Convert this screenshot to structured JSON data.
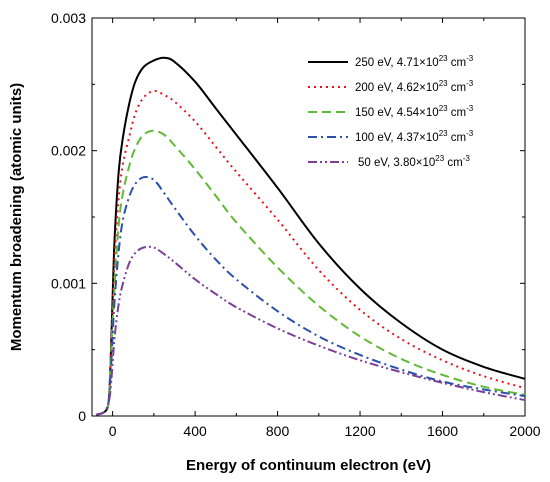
{
  "chart_data": {
    "type": "line",
    "xlabel": "Energy of continuum electron (eV)",
    "ylabel": "Momentum broadening (atomic units)",
    "xlim": [
      -100,
      2000
    ],
    "ylim": [
      0,
      0.003
    ],
    "x_ticks": [
      0,
      400,
      800,
      1200,
      1600,
      2000
    ],
    "y_ticks": [
      0,
      0.001,
      0.002,
      0.003
    ],
    "x_tick_labels": [
      "0",
      "400",
      "800",
      "1200",
      "1600",
      "2000"
    ],
    "y_tick_labels": [
      "0",
      "0.001",
      "0.002",
      "0.003"
    ],
    "grid": false,
    "legend_position": "top-right",
    "series": [
      {
        "name": "250 eV, 4.71×10²³ cm⁻³",
        "legend_label": {
          "main": "250 eV, 4.71×10",
          "exp": "23",
          "unit": " cm",
          "unit_exp": "-3"
        },
        "color": "#000000",
        "dash": "solid",
        "x": [
          -80,
          -40,
          -20,
          -10,
          0,
          10,
          30,
          50,
          80,
          110,
          150,
          200,
          250,
          300,
          400,
          500,
          600,
          800,
          1000,
          1200,
          1400,
          1600,
          1800,
          2000
        ],
        "y": [
          1e-05,
          3e-05,
          0.0001,
          0.0004,
          0.0009,
          0.00135,
          0.00185,
          0.0021,
          0.00235,
          0.00252,
          0.00263,
          0.00268,
          0.0027,
          0.00267,
          0.00252,
          0.00232,
          0.00212,
          0.00172,
          0.0013,
          0.00096,
          0.0007,
          0.0005,
          0.00037,
          0.00028
        ]
      },
      {
        "name": "200 eV, 4.62×10²³ cm⁻³",
        "legend_label": {
          "main": "200 eV, 4.62×10",
          "exp": "23",
          "unit": " cm",
          "unit_exp": "-3"
        },
        "color": "#e8141b",
        "dash": "dotted",
        "x": [
          -80,
          -40,
          -20,
          -10,
          0,
          10,
          30,
          50,
          80,
          110,
          150,
          200,
          250,
          300,
          400,
          500,
          600,
          800,
          1000,
          1200,
          1400,
          1600,
          1800,
          2000
        ],
        "y": [
          1e-05,
          3e-05,
          0.0001,
          0.0004,
          0.0008,
          0.0012,
          0.00165,
          0.0019,
          0.0021,
          0.00228,
          0.0024,
          0.00245,
          0.00242,
          0.00237,
          0.00222,
          0.00203,
          0.00184,
          0.00148,
          0.0011,
          0.0008,
          0.00058,
          0.00042,
          0.0003,
          0.00021
        ]
      },
      {
        "name": "150 eV, 4.54×10²³ cm⁻³",
        "legend_label": {
          "main": "150 eV, 4.54×10",
          "exp": "23",
          "unit": " cm",
          "unit_exp": "-3"
        },
        "color": "#62b838",
        "dash": "dashed",
        "x": [
          -80,
          -40,
          -20,
          -10,
          0,
          10,
          30,
          50,
          80,
          110,
          150,
          200,
          250,
          300,
          400,
          500,
          600,
          800,
          1000,
          1200,
          1400,
          1600,
          1800,
          2000
        ],
        "y": [
          1e-05,
          3e-05,
          0.0001,
          0.0004,
          0.0007,
          0.001,
          0.00145,
          0.00168,
          0.00188,
          0.00202,
          0.00212,
          0.00215,
          0.00212,
          0.00204,
          0.00186,
          0.00166,
          0.00146,
          0.00112,
          0.00083,
          0.0006,
          0.00043,
          0.00031,
          0.00022,
          0.00016
        ]
      },
      {
        "name": "100 eV, 4.37×10²³ cm⁻³",
        "legend_label": {
          "main": "100 eV, 4.37×10",
          "exp": "23",
          "unit": " cm",
          "unit_exp": "-3"
        },
        "color": "#2b50a8",
        "dash": "dashdot",
        "x": [
          -80,
          -40,
          -20,
          -10,
          0,
          10,
          30,
          50,
          80,
          110,
          150,
          200,
          250,
          300,
          400,
          500,
          600,
          800,
          1000,
          1200,
          1400,
          1600,
          1800,
          2000
        ],
        "y": [
          1e-05,
          3e-05,
          0.0001,
          0.0003,
          0.0006,
          0.00088,
          0.00125,
          0.00148,
          0.00165,
          0.00175,
          0.0018,
          0.00178,
          0.00168,
          0.00157,
          0.00136,
          0.00118,
          0.00103,
          0.00079,
          0.0006,
          0.00046,
          0.00035,
          0.00026,
          0.0002,
          0.00015
        ]
      },
      {
        "name": "50 eV, 3.80×10²³ cm⁻³",
        "legend_label": {
          "main": "50 eV, 3.80×10",
          "exp": "23",
          "unit": " cm",
          "unit_exp": "-3"
        },
        "color": "#7b3f99",
        "dash": "dashdotdot",
        "x": [
          -80,
          -40,
          -20,
          -10,
          0,
          10,
          30,
          50,
          80,
          110,
          150,
          200,
          250,
          300,
          400,
          500,
          600,
          800,
          1000,
          1200,
          1400,
          1600,
          1800,
          2000
        ],
        "y": [
          1e-05,
          3e-05,
          0.0001,
          0.0002,
          0.0004,
          0.0006,
          0.00085,
          0.001,
          0.00115,
          0.00123,
          0.00127,
          0.00127,
          0.00122,
          0.00116,
          0.00103,
          0.00092,
          0.00082,
          0.00066,
          0.00053,
          0.00042,
          0.00033,
          0.00025,
          0.00018,
          0.00012
        ]
      }
    ]
  }
}
